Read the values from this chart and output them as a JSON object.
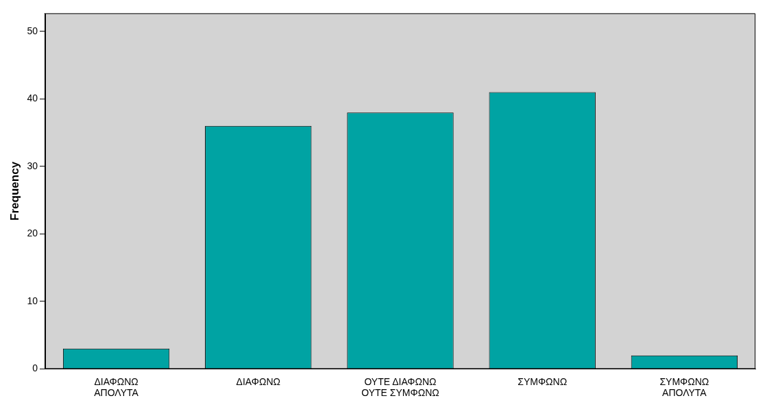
{
  "chart_data": {
    "type": "bar",
    "ylabel": "Frequency",
    "categories": [
      "ΔΙΑΦΩΝΩ ΑΠΟΛΥΤΑ",
      "ΔΙΑΦΩΝΩ",
      "ΟΥΤΕ ΔΙΑΦΩΝΩ ΟΥΤΕ ΣΥΜΦΩΝΩ",
      "ΣΥΜΦΩΝΩ",
      "ΣΥΜΦΩΝΩ ΑΠΟΛΥΤΑ"
    ],
    "values": [
      3,
      36,
      38,
      41,
      2
    ],
    "color": "#00a3a3",
    "ylim": [
      0,
      52.7
    ],
    "yticks": [
      0,
      10,
      20,
      30,
      40,
      50
    ],
    "grid": false,
    "legend": false
  }
}
